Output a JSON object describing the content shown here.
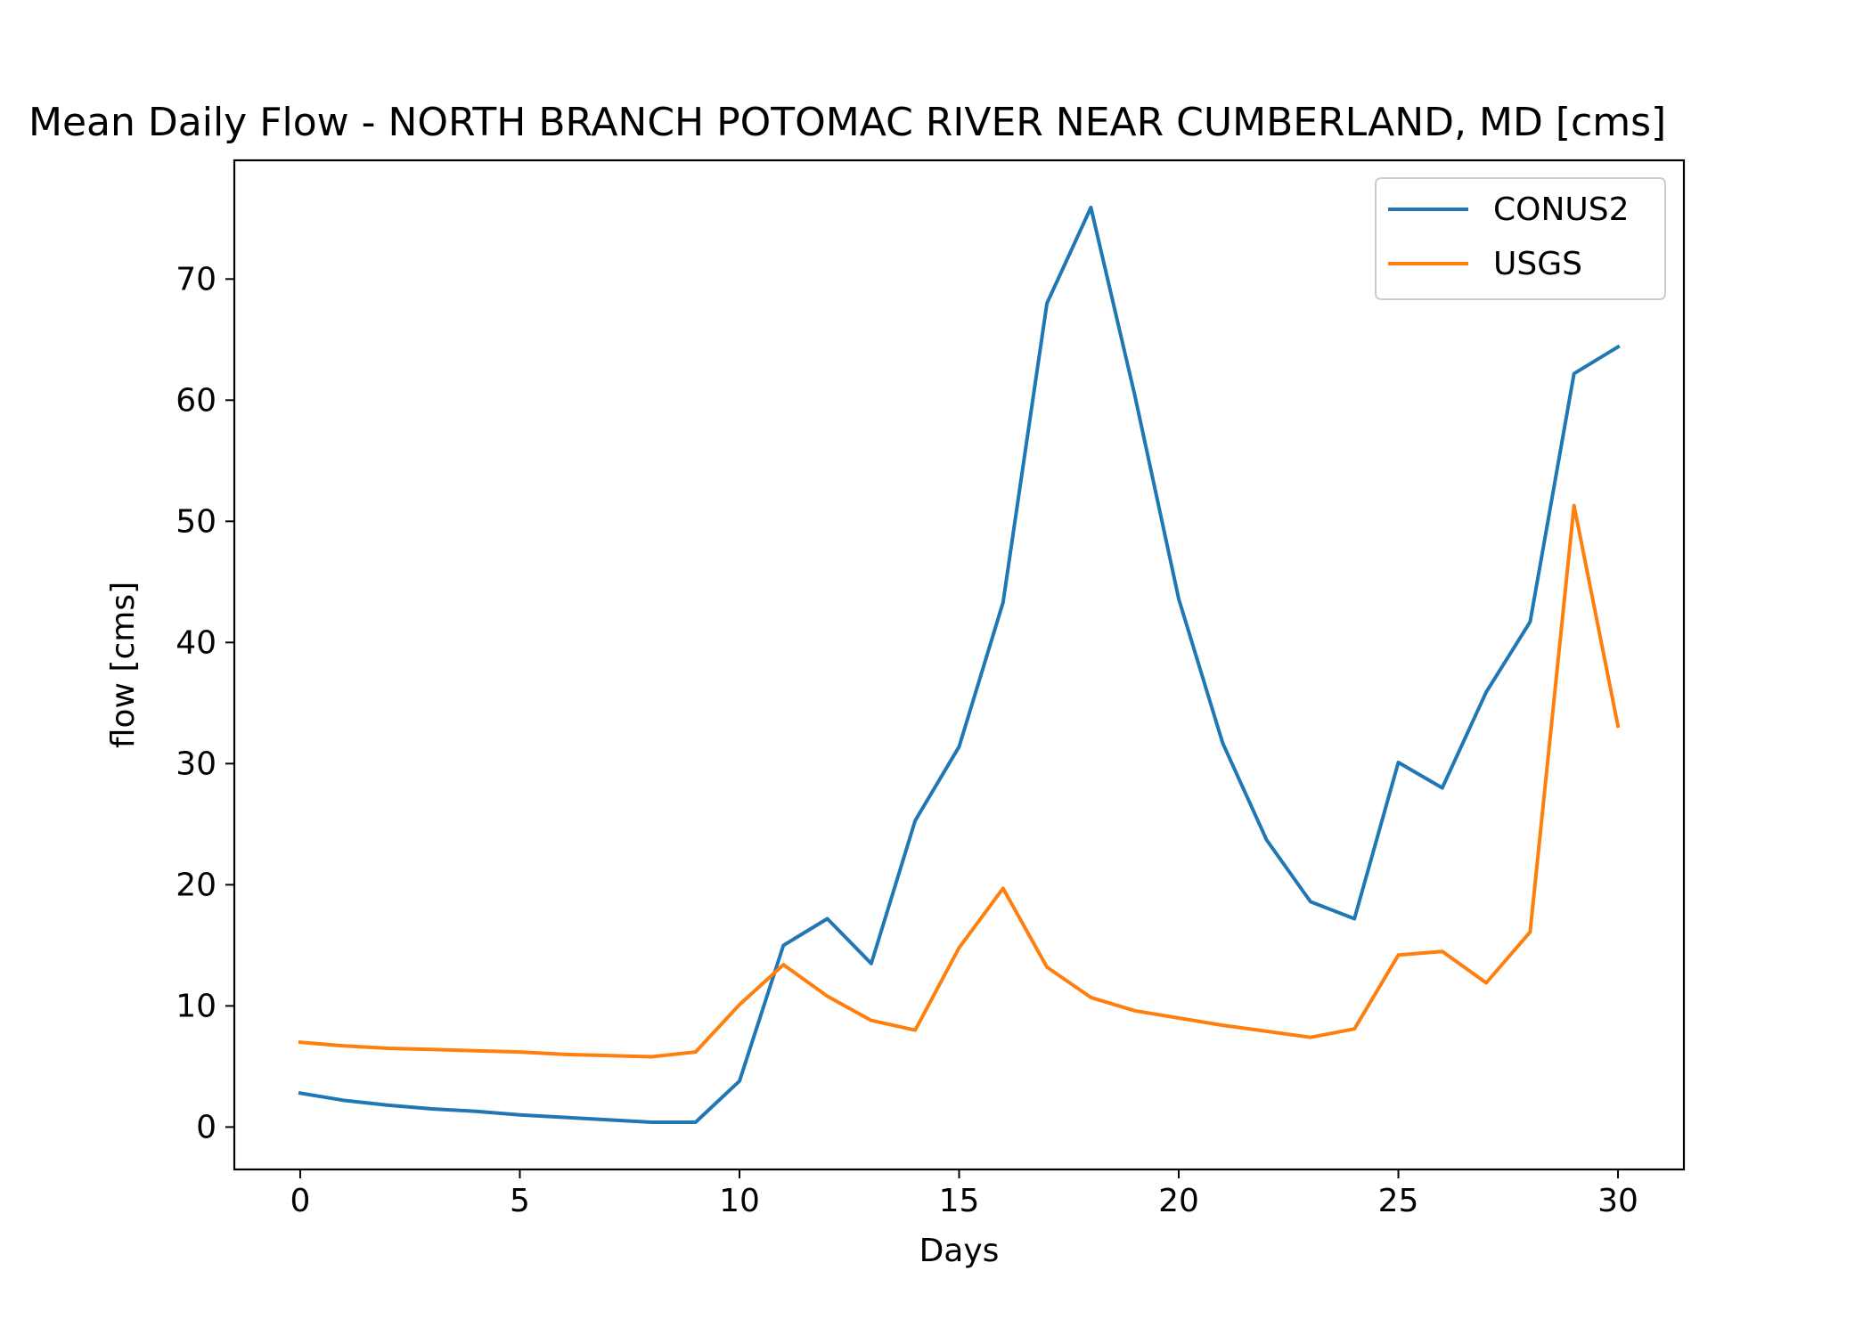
{
  "chart_data": {
    "type": "line",
    "title": "Mean Daily Flow - NORTH BRANCH POTOMAC RIVER NEAR CUMBERLAND, MD [cms]",
    "xlabel": "Days",
    "ylabel": "flow [cms]",
    "xlim": [
      -1.5,
      31.5
    ],
    "ylim": [
      -3.5,
      79.8
    ],
    "xticks": [
      0,
      5,
      10,
      15,
      20,
      25,
      30
    ],
    "yticks": [
      0,
      10,
      20,
      30,
      40,
      50,
      60,
      70
    ],
    "grid": false,
    "legend_position": "top-right",
    "x": [
      0,
      1,
      2,
      3,
      4,
      5,
      6,
      7,
      8,
      9,
      10,
      11,
      12,
      13,
      14,
      15,
      16,
      17,
      18,
      19,
      20,
      21,
      22,
      23,
      24,
      25,
      26,
      27,
      28,
      29,
      30
    ],
    "series": [
      {
        "name": "CONUS2",
        "color": "#1f77b4",
        "values": [
          2.8,
          2.2,
          1.8,
          1.5,
          1.3,
          1.0,
          0.8,
          0.6,
          0.4,
          0.4,
          3.8,
          15.0,
          17.2,
          13.5,
          25.3,
          31.4,
          43.3,
          68.0,
          75.9,
          60.4,
          43.6,
          31.7,
          23.7,
          18.6,
          17.2,
          30.1,
          28.0,
          35.9,
          41.7,
          62.2,
          64.4
        ]
      },
      {
        "name": "USGS",
        "color": "#ff7f0e",
        "values": [
          7.0,
          6.7,
          6.5,
          6.4,
          6.3,
          6.2,
          6.0,
          5.9,
          5.8,
          6.2,
          10.1,
          13.4,
          10.8,
          8.8,
          8.0,
          14.8,
          19.7,
          13.2,
          10.7,
          9.6,
          9.0,
          8.4,
          7.9,
          7.4,
          8.1,
          14.2,
          14.5,
          11.9,
          16.1,
          51.3,
          33.1
        ]
      }
    ]
  }
}
